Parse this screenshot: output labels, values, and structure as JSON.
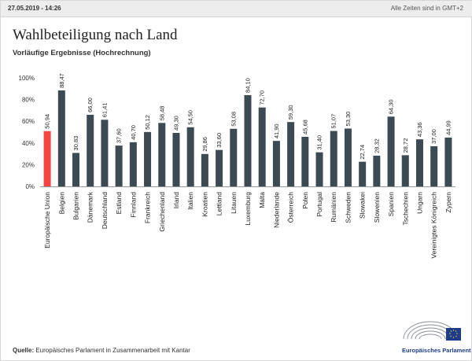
{
  "header": {
    "timestamp": "27.05.2019 - 14:26",
    "timezone_note": "Alle Zeiten sind in GMT+2"
  },
  "chart_data": {
    "type": "bar",
    "title": "Wahlbeteiligung nach Land",
    "subtitle": "Vorläufige Ergebnisse (Hochrechnung)",
    "xlabel": "",
    "ylabel": "",
    "ylim": [
      0,
      100
    ],
    "yticks": [
      "0%",
      "20%",
      "40%",
      "60%",
      "80%",
      "100%"
    ],
    "grid": false,
    "highlight_index": 0,
    "colors": {
      "highlight": "#f24440",
      "default": "#3c4a54",
      "axis": "#999999"
    },
    "categories": [
      "Europäische Union",
      "Belgien",
      "Bulgarien",
      "Dänemark",
      "Deutschland",
      "Estland",
      "Finnland",
      "Frankreich",
      "Griechenland",
      "Irland",
      "Italien",
      "Kroatien",
      "Lettland",
      "Litauen",
      "Luxemburg",
      "Malta",
      "Niederlande",
      "Österreich",
      "Polen",
      "Portugal",
      "Rumänien",
      "Schweden",
      "Slowakei",
      "Slowenien",
      "Spanien",
      "Tschechien",
      "Ungarn",
      "Vereinigtes Königreich",
      "Zypern"
    ],
    "values": [
      50.94,
      88.47,
      30.83,
      66.0,
      61.41,
      37.6,
      40.7,
      50.12,
      58.48,
      49.3,
      54.5,
      29.86,
      33.6,
      53.08,
      84.1,
      72.7,
      41.9,
      59.3,
      45.68,
      31.4,
      51.07,
      53.3,
      22.74,
      28.32,
      64.3,
      28.72,
      43.36,
      37.0,
      44.99
    ],
    "value_labels": [
      "50,94",
      "88,47",
      "30,83",
      "66,00",
      "61,41",
      "37,60",
      "40,70",
      "50,12",
      "58,48",
      "49,30",
      "54,50",
      "29,86",
      "33,60",
      "53,08",
      "84,10",
      "72,70",
      "41,90",
      "59,30",
      "45,68",
      "31,40",
      "51,07",
      "53,30",
      "22,74",
      "28,32",
      "64,30",
      "28,72",
      "43,36",
      "37,00",
      "44,99"
    ]
  },
  "footer": {
    "source_label": "Quelle:",
    "source_text": " Europäisches Parlament in Zusammenarbeit mit Kantar",
    "logo_name": "Europäisches Parlament"
  }
}
